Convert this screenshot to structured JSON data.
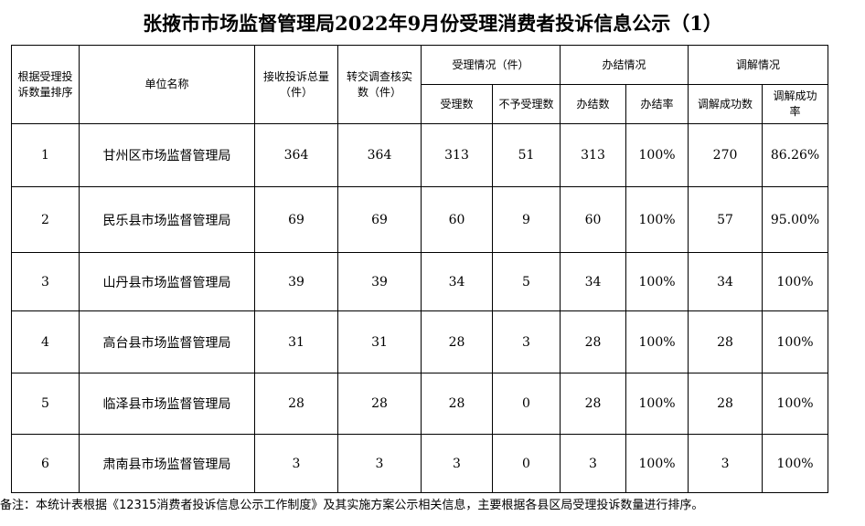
{
  "title": "张掖市市场监督管理局2022年9月份受理消费者投诉信息公示（1）",
  "headers": {
    "rank": "根据受理投诉数量排序",
    "unit": "单位名称",
    "received": "接收投诉总量（件）",
    "transferred": "转交调查核实数（件）",
    "accept_group": "受理情况（件）",
    "accepted": "受理数",
    "rejected": "不予受理数",
    "done_group": "办结情况",
    "done": "办结数",
    "done_rate": "办结率",
    "mediate_group": "调解情况",
    "mediated": "调解成功数",
    "mediate_rate": "调解成功率"
  },
  "rows": [
    {
      "rank": "1",
      "unit": "甘州区市场监督管理局",
      "received": "364",
      "transferred": "364",
      "accepted": "313",
      "rejected": "51",
      "done": "313",
      "done_rate": "100%",
      "mediated": "270",
      "mediate_rate": "86.26%"
    },
    {
      "rank": "2",
      "unit": "民乐县市场监督管理局",
      "received": "69",
      "transferred": "69",
      "accepted": "60",
      "rejected": "9",
      "done": "60",
      "done_rate": "100%",
      "mediated": "57",
      "mediate_rate": "95.00%"
    },
    {
      "rank": "3",
      "unit": "山丹县市场监督管理局",
      "received": "39",
      "transferred": "39",
      "accepted": "34",
      "rejected": "5",
      "done": "34",
      "done_rate": "100%",
      "mediated": "34",
      "mediate_rate": "100%"
    },
    {
      "rank": "4",
      "unit": "高台县市场监督管理局",
      "received": "31",
      "transferred": "31",
      "accepted": "28",
      "rejected": "3",
      "done": "28",
      "done_rate": "100%",
      "mediated": "28",
      "mediate_rate": "100%"
    },
    {
      "rank": "5",
      "unit": "临泽县市场监督管理局",
      "received": "28",
      "transferred": "28",
      "accepted": "28",
      "rejected": "0",
      "done": "28",
      "done_rate": "100%",
      "mediated": "28",
      "mediate_rate": "100%"
    },
    {
      "rank": "6",
      "unit": "肃南县市场监督管理局",
      "received": "3",
      "transferred": "3",
      "accepted": "3",
      "rejected": "0",
      "done": "3",
      "done_rate": "100%",
      "mediated": "3",
      "mediate_rate": "100%"
    }
  ],
  "footnote": "备注：本统计表根据《12315消费者投诉信息公示工作制度》及其实施方案公示相关信息，主要根据各县区局受理投诉数量进行排序。"
}
